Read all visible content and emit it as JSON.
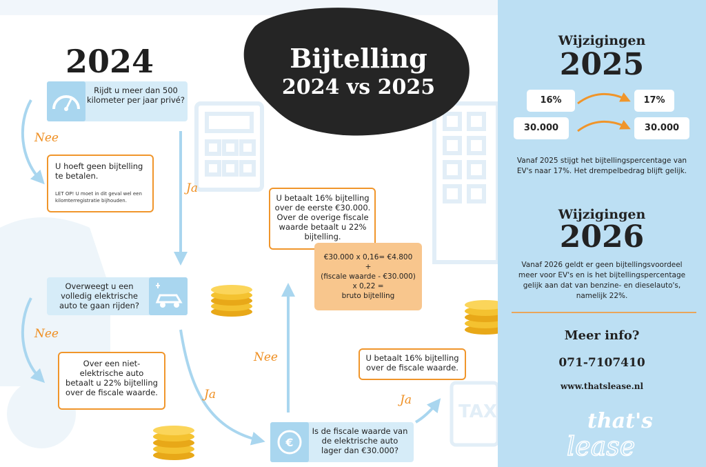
{
  "title": {
    "line1": "Bijtelling",
    "line2": "2024 vs 2025"
  },
  "left_year": "2024",
  "flow": {
    "q1": "Rijdt u meer dan 500 kilometer per jaar privé?",
    "q1_nee_label": "Nee",
    "q1_ja_label": "Ja",
    "no_bijtelling": {
      "title": "U hoeft geen bijtelling te betalen.",
      "note": "LET OP! U moet in dit geval wel een kilomterregistratie bijhouden."
    },
    "q2": "Overweegt u een volledig elektrische auto te gaan rijden?",
    "q2_nee_label": "Nee",
    "q2_ja_label": "Ja",
    "non_electric": "Over een niet-elektrische auto betaalt u 22% bijtelling over de fiscale waarde.",
    "q3": "Is de fiscale waarde van de elektrische auto lager dan €30.000?",
    "q3_nee_label": "Nee",
    "q3_ja_label": "Ja",
    "over_30k": "U betaalt 16% bijtelling over de eerste €30.000. Over de overige fiscale waarde betaalt u 22% bijtelling.",
    "formula": [
      "€30.000 x 0,16= €4.800",
      "+",
      "(fiscale waarde - €30.000)",
      "x 0,22 =",
      "bruto bijtelling"
    ],
    "under_30k": "U betaalt 16% bijtelling over de fiscale waarde."
  },
  "side": {
    "changes_2025_label": "Wijzigingen",
    "changes_2025_year": "2025",
    "pct_from": "16%",
    "pct_to": "17%",
    "threshold_from": "30.000",
    "threshold_to": "30.000",
    "text_2025": "Vanaf 2025 stijgt het bijtellingspercentage van EV's naar 17%. Het drempelbedrag blijft gelijk.",
    "changes_2026_label": "Wijzigingen",
    "changes_2026_year": "2026",
    "text_2026": "Vanaf 2026 geldt er geen bijtellingsvoordeel meer voor EV's en is het bijtellingspercentage gelijk aan dat van benzine- en dieselauto's, namelijk 22%.",
    "more_info": "Meer info?",
    "phone": "071-7107410",
    "website": "www.thatslease.nl",
    "logo_text": "that's lease"
  },
  "colors": {
    "orange": "#f0952a",
    "light_blue": "#bcdff3",
    "box_blue": "#d6ecf8",
    "icon_blue": "#a9d6ef",
    "dark": "#222222",
    "formula_bg": "#f8c68d"
  },
  "icons": [
    "speedometer-icon",
    "ev-charging-car-icon",
    "euro-coin-icon",
    "coin-stack-icon",
    "calculator-icon",
    "building-icon",
    "tax-document-icon",
    "arrow-icon"
  ]
}
